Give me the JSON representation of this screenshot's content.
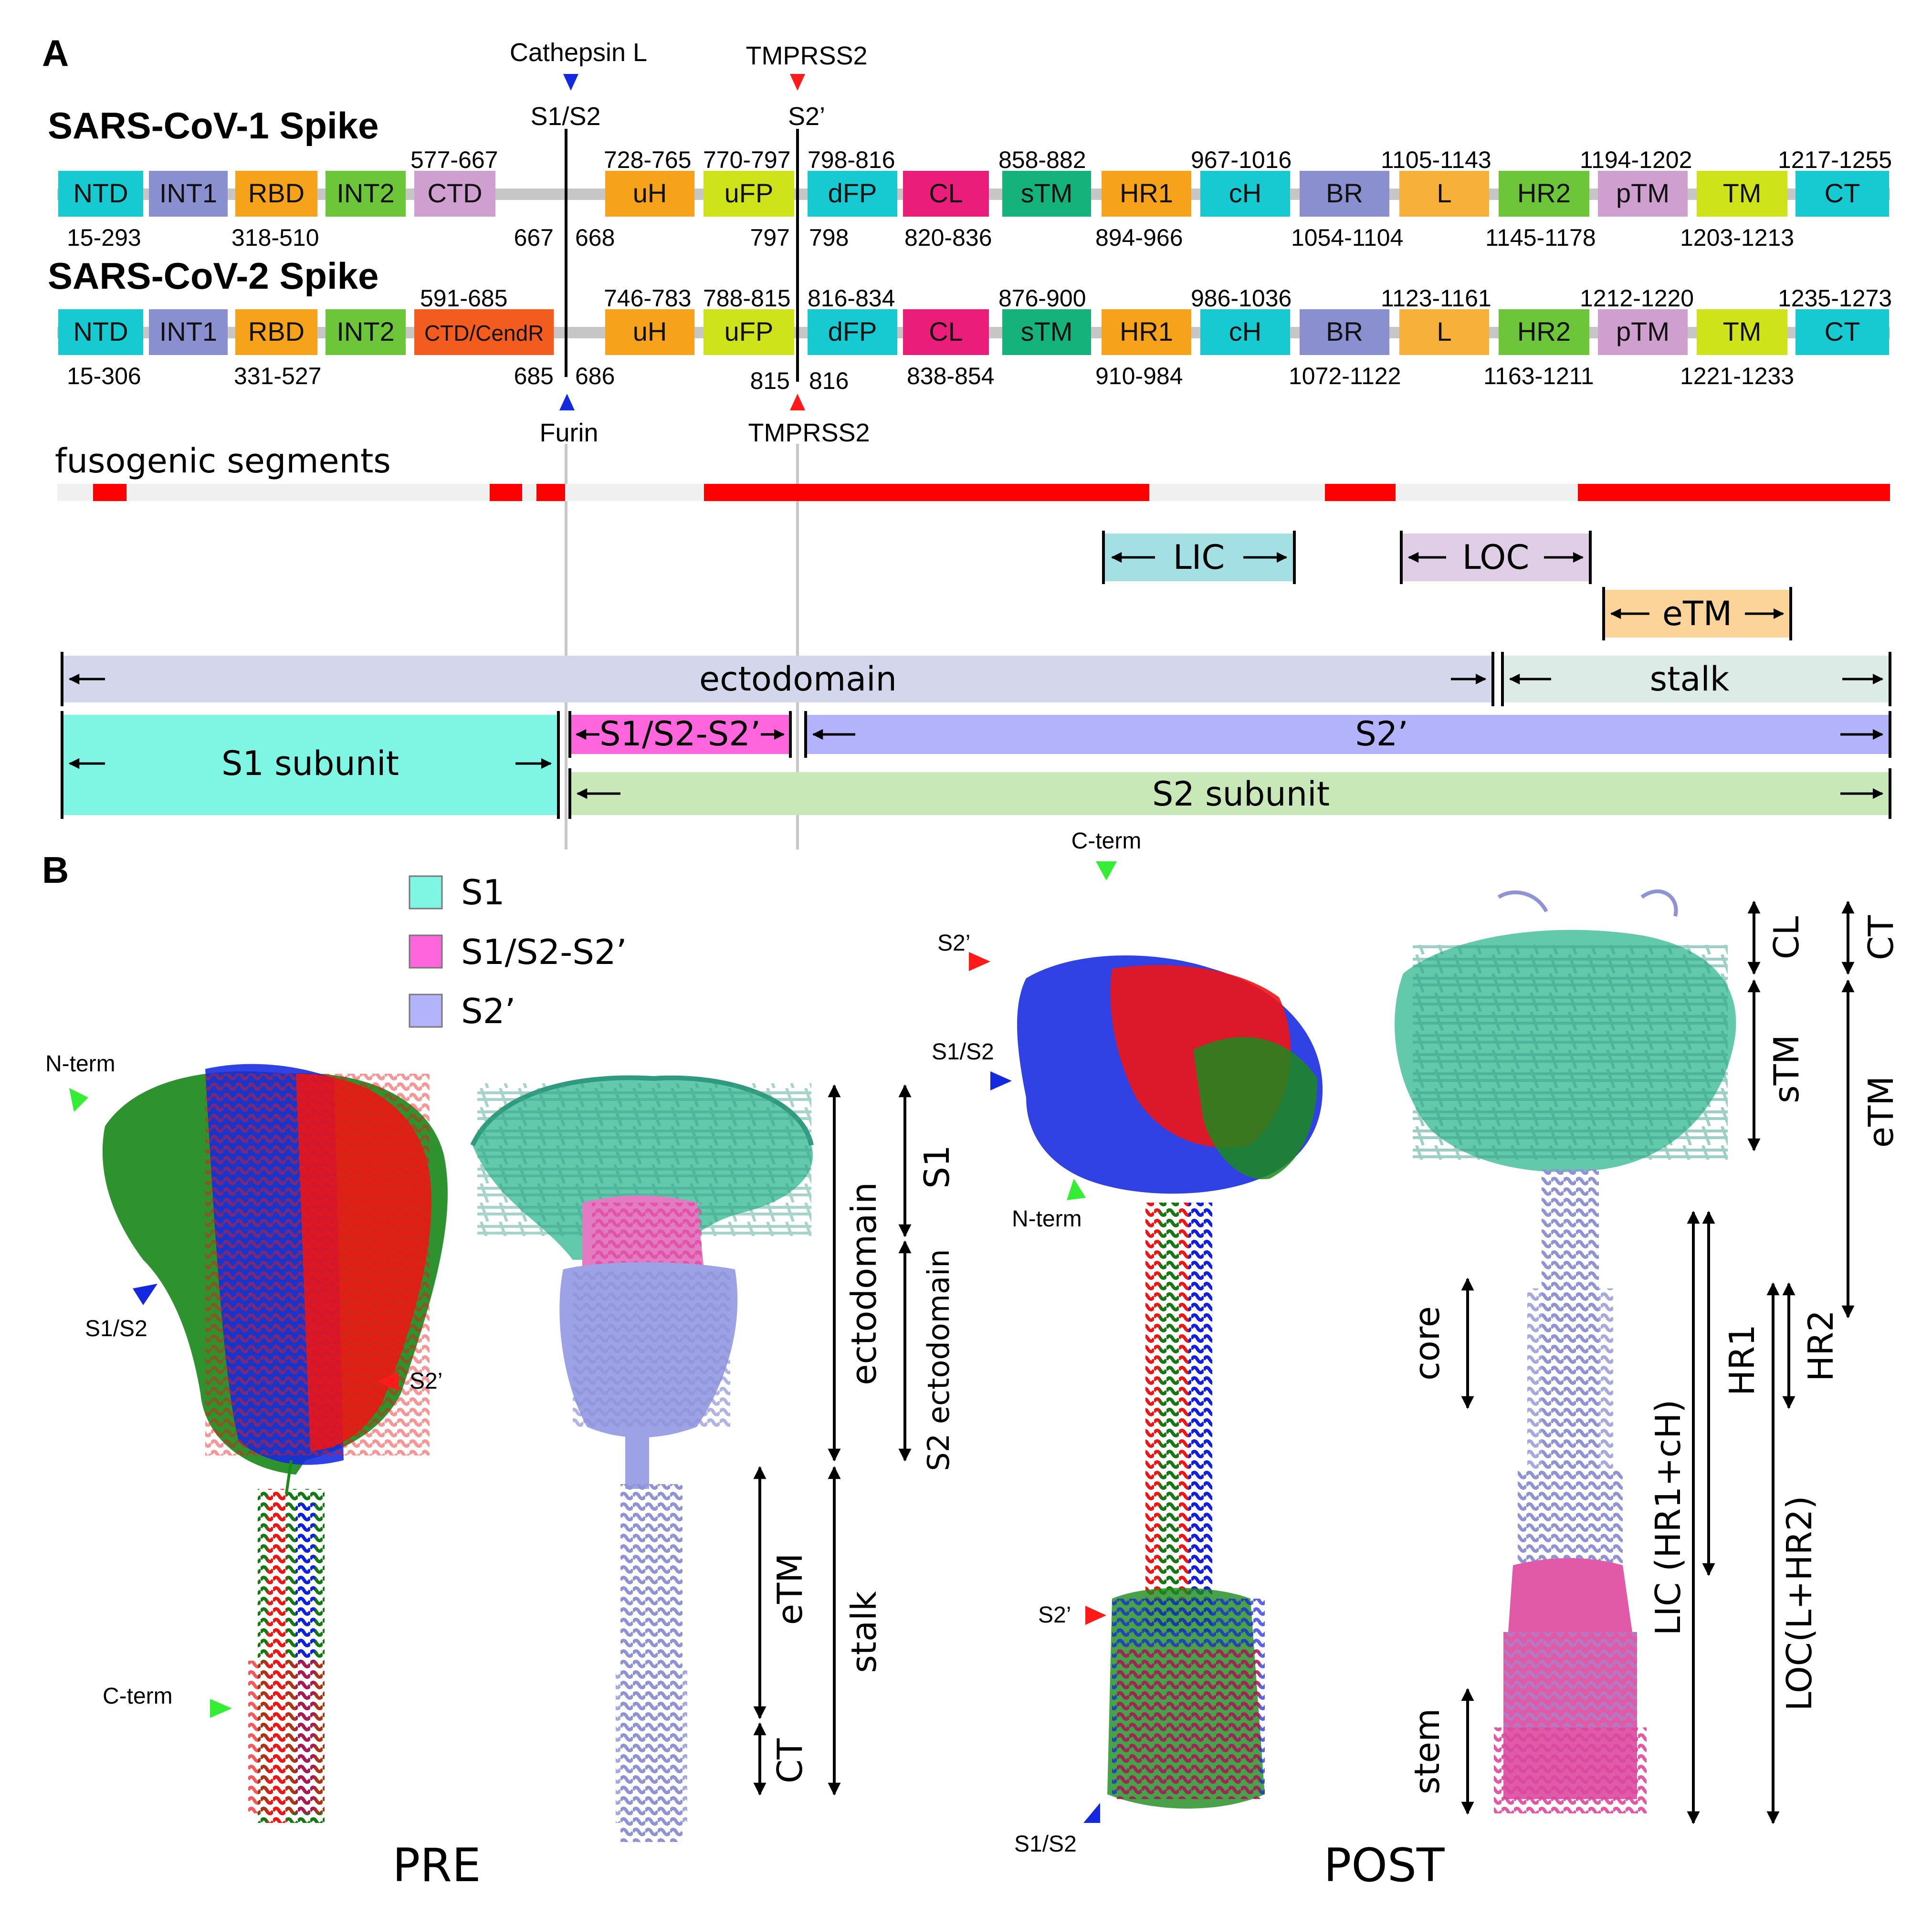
{
  "panel_labels": {
    "a": "A",
    "b": "B"
  },
  "colors": {
    "NTD": "#17c9d1",
    "INT1": "#8a8fcf",
    "RBD": "#f7a21b",
    "INT2": "#6dc53a",
    "CTD": "#cf9fcf",
    "CTD/CendR": "#f25c1e",
    "uH": "#f7a21b",
    "uFP": "#cfe31a",
    "dFP": "#17c9d1",
    "CL": "#ea1d7a",
    "sTM": "#16b27b",
    "HR1": "#f7a21b",
    "cH": "#17c9d1",
    "BR": "#8a8fcf",
    "L": "#f7b03a",
    "HR2": "#6dc53a",
    "pTM": "#cf9fcf",
    "TM": "#cfe31a",
    "CT": "#17c9d1",
    "fusogenic": "#ff0000",
    "S1": "#7ff5e4",
    "S1S2S2p": "#ff66de",
    "S2p": "#b2b3fb",
    "S2subunit": "#c9e8b7",
    "ectodomain": "#d4d7ec",
    "stalk": "#dcebe6",
    "LIC": "#a3dfe3",
    "LOC": "#e0cde6",
    "eTM": "#fcd49a",
    "protease_blue": "#1428e0",
    "protease_red": "#ff1a1a",
    "terminus_green": "#33ee33"
  },
  "proteases": {
    "cathepsin": "Cathepsin L",
    "s1s2_top": "S1/S2",
    "tmprss2_top": "TMPRSS2",
    "s2p_top": "S2’",
    "furin": "Furin",
    "tmprss2_bottom": "TMPRSS2"
  },
  "sars1": {
    "title": "SARS-CoV-1 Spike",
    "domains": [
      "NTD",
      "INT1",
      "RBD",
      "INT2",
      "CTD",
      "uH",
      "uFP",
      "dFP",
      "CL",
      "sTM",
      "HR1",
      "cH",
      "BR",
      "L",
      "HR2",
      "pTM",
      "TM",
      "CT"
    ],
    "top_ranges": [
      "577-667",
      "728-765",
      "770-797",
      "798-816",
      "858-882",
      "967-1016",
      "1105-1143",
      "1194-1202",
      "1217-1255"
    ],
    "bottom_ranges": [
      "15-293",
      "318-510",
      "820-836",
      "894-966",
      "1054-1104",
      "1145-1178",
      "1203-1213"
    ],
    "cut_left": "667",
    "cut_right": "668",
    "cut2_left": "797",
    "cut2_right": "798"
  },
  "sars2": {
    "title": "SARS-CoV-2 Spike",
    "domains": [
      "NTD",
      "INT1",
      "RBD",
      "INT2",
      "CTD/CendR",
      "uH",
      "uFP",
      "dFP",
      "CL",
      "sTM",
      "HR1",
      "cH",
      "BR",
      "L",
      "HR2",
      "pTM",
      "TM",
      "CT"
    ],
    "top_ranges": [
      "591-685",
      "746-783",
      "788-815",
      "816-834",
      "876-900",
      "986-1036",
      "1123-1161",
      "1212-1220",
      "1235-1273"
    ],
    "bottom_ranges": [
      "15-306",
      "331-527",
      "838-854",
      "910-984",
      "1072-1122",
      "1163-1211",
      "1221-1233"
    ],
    "cut_left": "685",
    "cut_right": "686",
    "cut2_left": "815",
    "cut2_right": "816"
  },
  "fusogenic_label": "fusogenic segments",
  "spans": {
    "LIC": "LIC",
    "LOC": "LOC",
    "eTM": "eTM",
    "ectodomain": "ectodomain",
    "stalk": "stalk",
    "s1_subunit": "S1 subunit",
    "s1s2s2p": "S1/S2-S2’",
    "s2p": "S2’",
    "s2_subunit": "S2 subunit"
  },
  "legend": {
    "s1": "S1",
    "s1s2s2p": "S1/S2-S2’",
    "s2p": "S2’"
  },
  "pre_annot": {
    "nterm": "N-term",
    "s1s2": "S1/S2",
    "s2p": "S2’",
    "cterm": "C-term"
  },
  "post_annot": {
    "cterm": "C-term",
    "s2p_top": "S2’",
    "s1s2_top": "S1/S2",
    "nterm": "N-term",
    "s2p_bottom": "S2’",
    "s1s2_bottom": "S1/S2"
  },
  "pre_measures": {
    "ectodomain": "ectodomain",
    "s1": "S1",
    "s2_ecto": "S2 ectodomain",
    "etm": "eTM",
    "stalk": "stalk",
    "ct": "CT"
  },
  "post_measures": {
    "cl": "CL",
    "ct": "CT",
    "stm": "sTM",
    "etm": "eTM",
    "core": "core",
    "stem": "stem",
    "lic": "LIC (HR1+cH)",
    "hr1": "HR1",
    "hr2": "HR2",
    "loc": "LOC(L+HR2)"
  },
  "captions": {
    "pre": "PRE",
    "post": "POST"
  }
}
